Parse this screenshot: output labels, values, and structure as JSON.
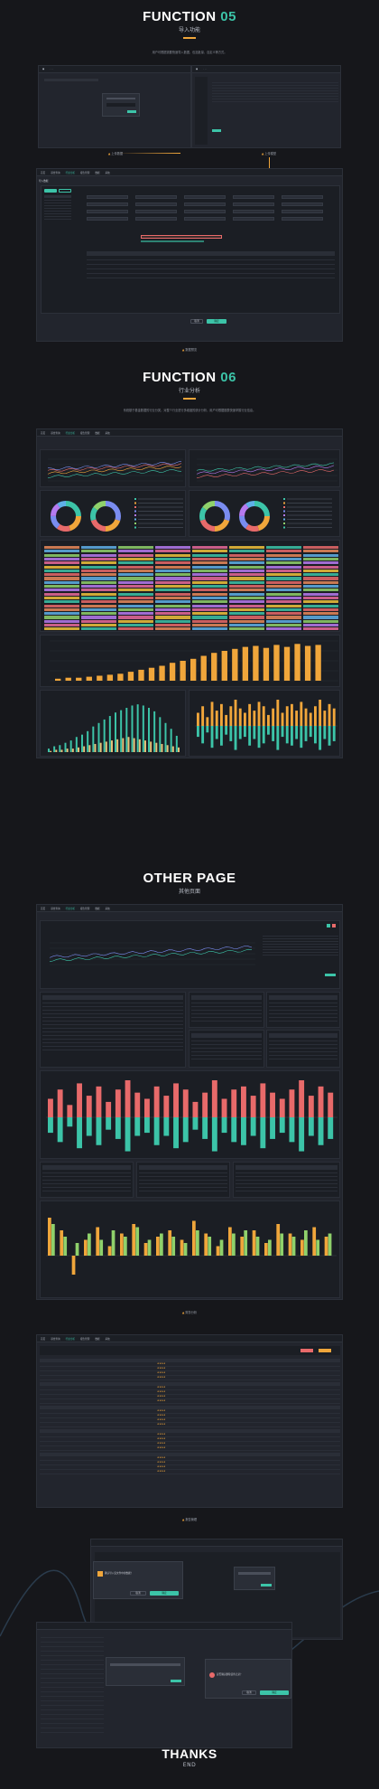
{
  "function05": {
    "title_word": "FUNCTION",
    "title_num": "05",
    "subtitle": "导入功能",
    "desc": "用户可根据需要快速导入数据，包括批量、自定义等方式。",
    "cap_left": "上传数据",
    "cap_right": "上传模型",
    "cap_bottom": "数据预览",
    "modal_title": "导入数据",
    "confirm": "确定",
    "cancel": "取消"
  },
  "function06": {
    "title_word": "FUNCTION",
    "title_num": "06",
    "subtitle": "行业分析",
    "desc": "系统基于基金数据的行业分类，对整个行业进行多维度的统计分析，用户可根据图表快速掌握行业信息。"
  },
  "other": {
    "title": "OTHER PAGE",
    "subtitle": "其他页面",
    "cap_analysis": "财务分析",
    "cap_list": "报告管理",
    "thanks": "THANKS",
    "end": "END"
  },
  "nav": {
    "items": [
      "首页",
      "基金查询",
      "行业分析",
      "报告管理",
      "数据",
      "系统"
    ]
  },
  "dialog": {
    "text_a": "确认导入该文件中的数据？",
    "text_b": "是否确认删除该条记录？",
    "ok": "确定",
    "cancel": "取消"
  },
  "colors": {
    "accent": "#3cc4a8",
    "orange": "#f0a63b",
    "red": "#e86a6a",
    "bg": "#16171b"
  },
  "chart_data": [
    {
      "type": "bar",
      "values": [
        2,
        3,
        3,
        4,
        5,
        6,
        7,
        9,
        11,
        13,
        15,
        18,
        20,
        22,
        25,
        28,
        30,
        32,
        34,
        35,
        33,
        36,
        34,
        37,
        35,
        36
      ]
    },
    {
      "type": "bar",
      "series": [
        {
          "values": [
            3,
            5,
            6,
            8,
            10,
            13,
            15,
            18,
            22,
            25,
            28,
            31,
            34,
            36,
            38,
            40,
            41,
            40,
            38,
            35,
            30,
            25,
            20,
            14
          ]
        },
        {
          "values": [
            1,
            2,
            2,
            3,
            3,
            4,
            5,
            6,
            7,
            8,
            9,
            10,
            11,
            12,
            13,
            12,
            11,
            10,
            9,
            8,
            7,
            6,
            5,
            4
          ]
        }
      ]
    },
    {
      "type": "bar",
      "series": [
        {
          "values": [
            6,
            9,
            4,
            11,
            7,
            10,
            5,
            9,
            12,
            8,
            6,
            10,
            7,
            11,
            9,
            5,
            8,
            12,
            6,
            9,
            10,
            7,
            11,
            8,
            6,
            9,
            12,
            7,
            10,
            8
          ]
        },
        {
          "values": [
            -5,
            -8,
            -3,
            -10,
            -6,
            -9,
            -4,
            -7,
            -11,
            -6,
            -5,
            -9,
            -6,
            -10,
            -8,
            -4,
            -7,
            -11,
            -5,
            -8,
            -9,
            -6,
            -10,
            -7,
            -5,
            -8,
            -11,
            -6,
            -9,
            -7
          ]
        }
      ]
    },
    {
      "type": "bar",
      "series": [
        {
          "values": [
            12,
            8,
            -6,
            5,
            9,
            3,
            7,
            10,
            4,
            6,
            8,
            5,
            11,
            7,
            3,
            9,
            6,
            8,
            4,
            10,
            7,
            5,
            9,
            6
          ]
        },
        {
          "values": [
            10,
            6,
            4,
            7,
            5,
            8,
            6,
            9,
            5,
            7,
            6,
            4,
            8,
            6,
            5,
            7,
            8,
            6,
            5,
            7,
            6,
            8,
            5,
            7
          ]
        }
      ]
    }
  ]
}
